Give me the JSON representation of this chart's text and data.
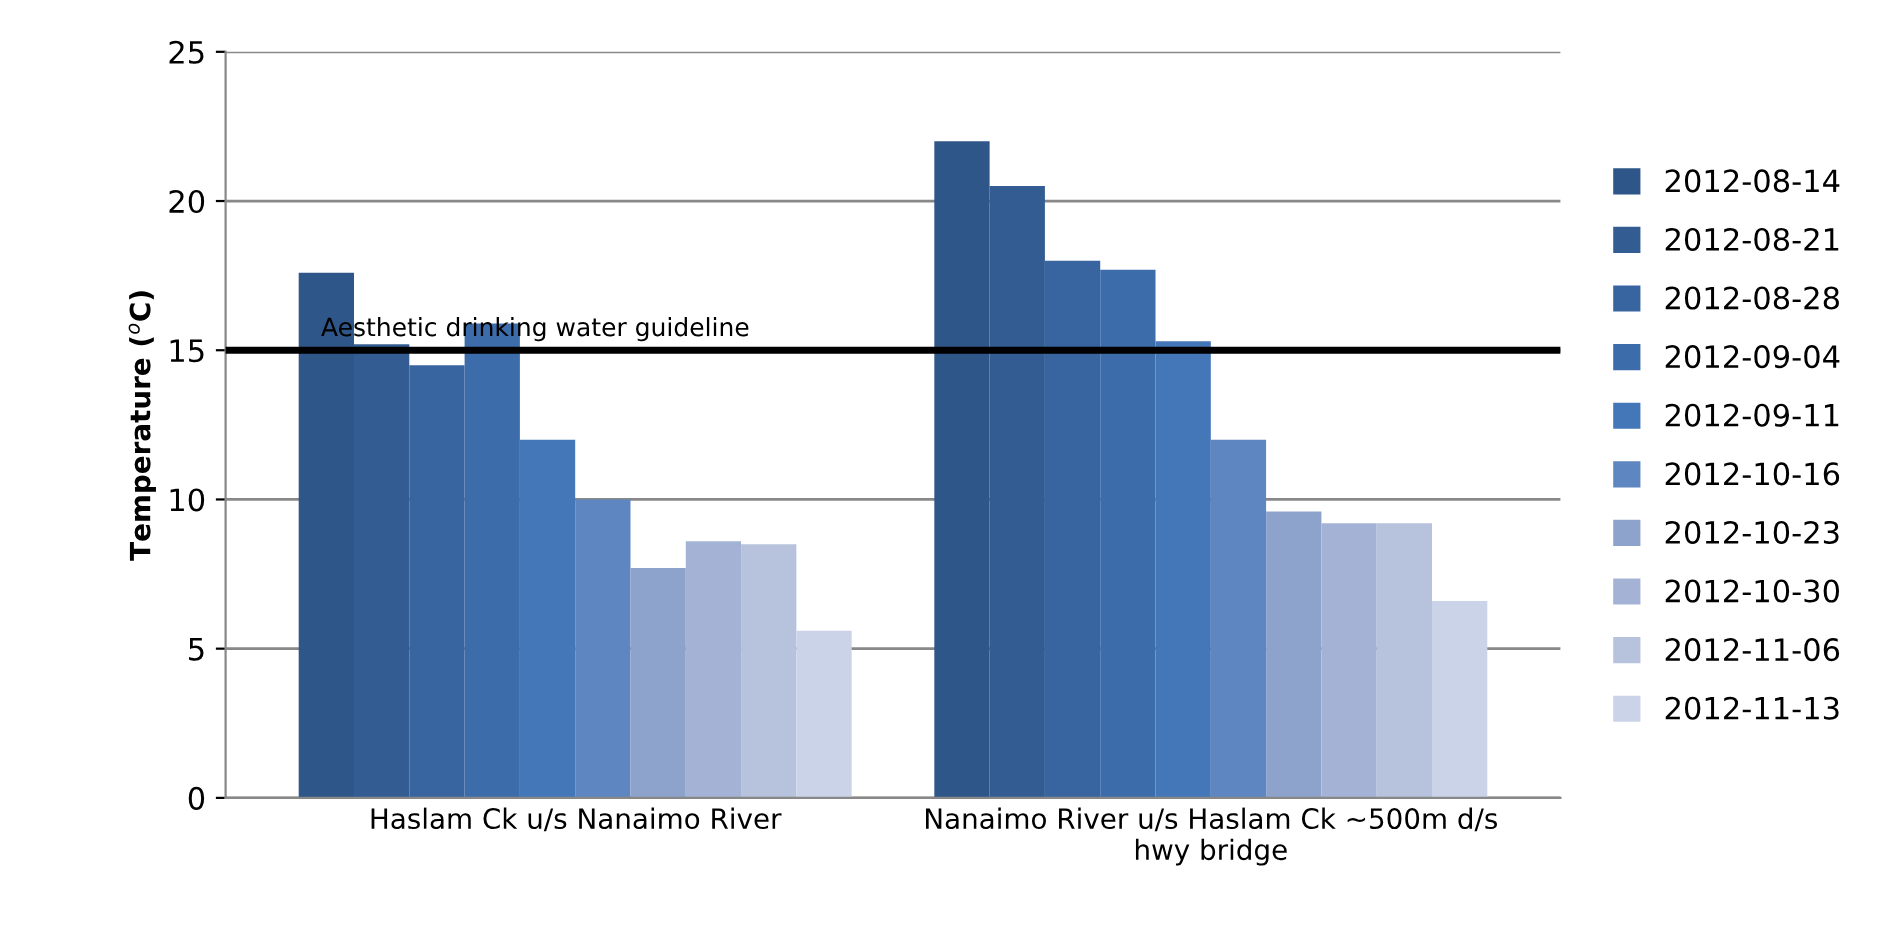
{
  "chart_data": {
    "type": "bar",
    "ylabel": "Temperature ($^{o}$C)",
    "categories": [
      "Haslam Ck u/s Nanaimo River",
      "Nanaimo River u/s Haslam Ck ~500m d/s hwy bridge"
    ],
    "series": [
      {
        "name": "2012-08-14",
        "color": "#2f5688",
        "values": [
          17.6,
          22.0
        ]
      },
      {
        "name": "2012-08-21",
        "color": "#335d92",
        "values": [
          15.2,
          20.5
        ]
      },
      {
        "name": "2012-08-28",
        "color": "#3864a0",
        "values": [
          14.5,
          18.0
        ]
      },
      {
        "name": "2012-09-04",
        "color": "#3d6cab",
        "values": [
          15.9,
          17.7
        ]
      },
      {
        "name": "2012-09-11",
        "color": "#4477b8",
        "values": [
          12.0,
          15.3
        ]
      },
      {
        "name": "2012-10-16",
        "color": "#5e86c0",
        "values": [
          10.0,
          12.0
        ]
      },
      {
        "name": "2012-10-23",
        "color": "#8ea3cc",
        "values": [
          7.7,
          9.6
        ]
      },
      {
        "name": "2012-10-30",
        "color": "#a4b3d5",
        "values": [
          8.6,
          9.2
        ]
      },
      {
        "name": "2012-11-06",
        "color": "#b7c2dd",
        "values": [
          8.5,
          9.2
        ]
      },
      {
        "name": "2012-11-13",
        "color": "#cbd3e8",
        "values": [
          5.6,
          6.6
        ]
      }
    ],
    "ylim": [
      0,
      25
    ],
    "yticks": [
      0,
      5,
      10,
      15,
      20,
      25
    ],
    "grid": "y",
    "legend": "right",
    "ref_lines": [
      {
        "axis": "y",
        "value": 15,
        "label": "Aesthetic drinking water guideline",
        "color": "#000000"
      }
    ]
  }
}
